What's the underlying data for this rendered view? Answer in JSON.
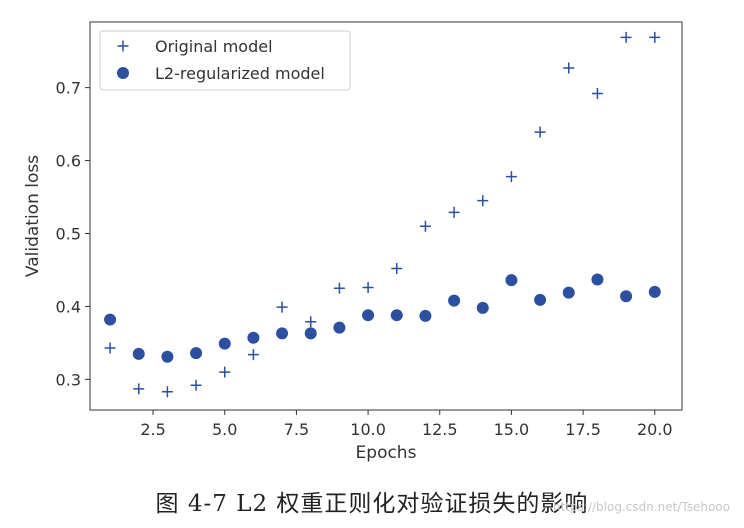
{
  "chart_data": {
    "type": "scatter",
    "xlabel": "Epochs",
    "ylabel": "Validation loss",
    "xlim": [
      0.3,
      20.95
    ],
    "ylim": [
      0.258,
      0.79
    ],
    "xticks": [
      2.5,
      5.0,
      7.5,
      10.0,
      12.5,
      15.0,
      17.5,
      20.0
    ],
    "yticks": [
      0.3,
      0.4,
      0.5,
      0.6,
      0.7
    ],
    "legend_position": "top-left",
    "series": [
      {
        "name": "Original model",
        "marker": "plus",
        "color": "#2d4fa0",
        "x": [
          1,
          2,
          3,
          4,
          5,
          6,
          7,
          8,
          9,
          10,
          11,
          12,
          13,
          14,
          15,
          16,
          17,
          18,
          19,
          20
        ],
        "y": [
          0.343,
          0.287,
          0.283,
          0.292,
          0.31,
          0.334,
          0.399,
          0.379,
          0.425,
          0.426,
          0.452,
          0.51,
          0.529,
          0.545,
          0.578,
          0.639,
          0.727,
          0.692,
          0.769,
          0.769
        ]
      },
      {
        "name": "L2-regularized model",
        "marker": "circle",
        "color": "#2d4fa0",
        "x": [
          1,
          2,
          3,
          4,
          5,
          6,
          7,
          8,
          9,
          10,
          11,
          12,
          13,
          14,
          15,
          16,
          17,
          18,
          19,
          20
        ],
        "y": [
          0.382,
          0.335,
          0.331,
          0.336,
          0.349,
          0.357,
          0.363,
          0.363,
          0.371,
          0.388,
          0.388,
          0.387,
          0.408,
          0.398,
          0.436,
          0.409,
          0.419,
          0.437,
          0.414,
          0.42
        ]
      }
    ]
  },
  "caption": "图 4-7   L2 权重正则化对验证损失的影响",
  "watermark": "https://blog.csdn.net/Tsehooo"
}
